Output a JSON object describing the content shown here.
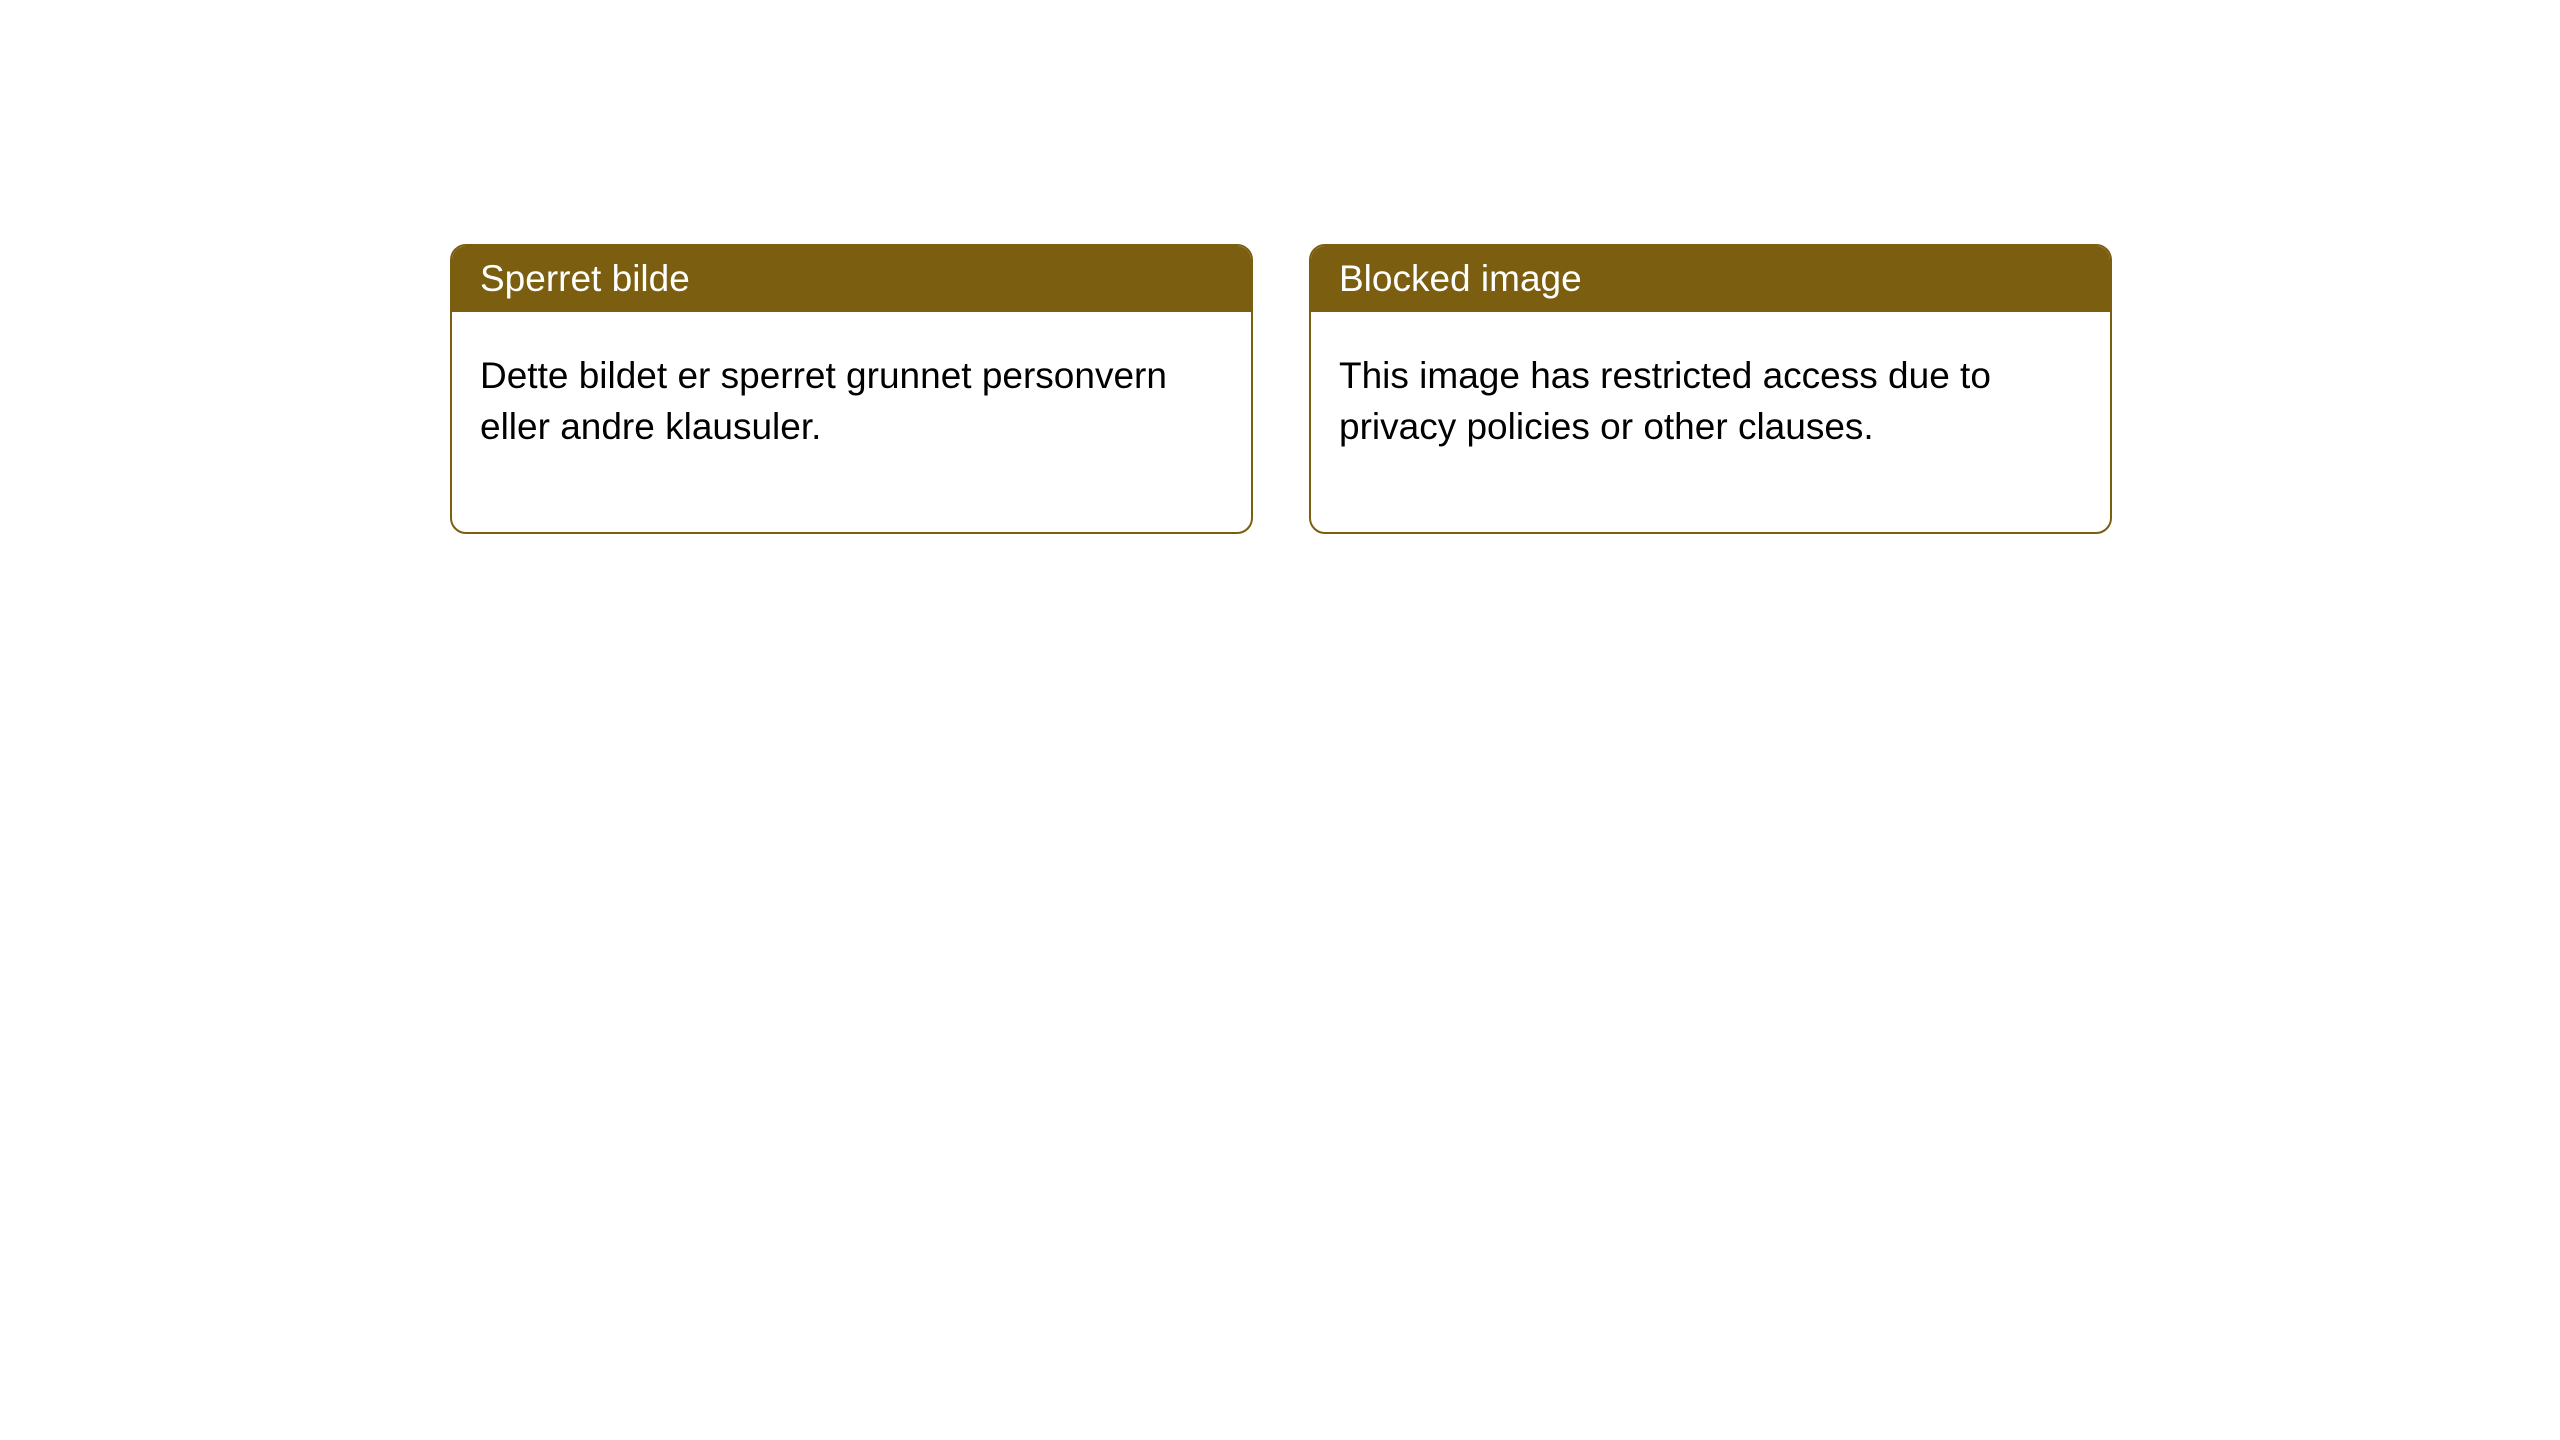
{
  "styling": {
    "card_border_color": "#7b5e10",
    "card_border_radius": 16,
    "card_background": "#ffffff",
    "header_background": "#7b5e10",
    "header_text_color": "#ffffff",
    "body_text_color": "#000000",
    "header_fontsize": 37,
    "body_fontsize": 37,
    "page_background": "#ffffff"
  },
  "cards": [
    {
      "title": "Sperret bilde",
      "body": "Dette bildet er sperret grunnet personvern eller andre klausuler."
    },
    {
      "title": "Blocked image",
      "body": "This image has restricted access due to privacy policies or other clauses."
    }
  ]
}
